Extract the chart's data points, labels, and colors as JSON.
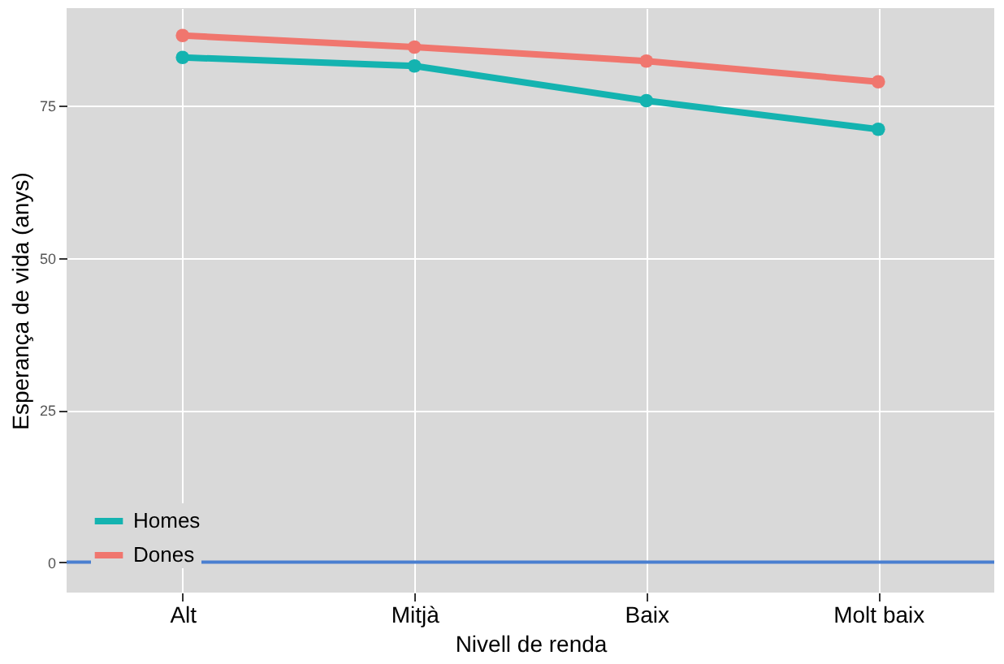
{
  "chart_data": {
    "type": "line",
    "xlabel": "Nivell de renda",
    "ylabel": "Esperança de vida (anys)",
    "categories": [
      "Alt",
      "Mitjà",
      "Baix",
      "Molt baix"
    ],
    "series": [
      {
        "name": "Homes",
        "color": "#14b3b0",
        "values": [
          82.9,
          81.5,
          75.8,
          71.1
        ]
      },
      {
        "name": "Dones",
        "color": "#f0766e",
        "values": [
          86.5,
          84.6,
          82.3,
          78.9
        ]
      }
    ],
    "ylim": [
      -5,
      91
    ],
    "yticks": [
      0,
      25,
      50,
      75
    ],
    "grid": true,
    "legend": "bottom left",
    "marker": "circle",
    "line_style": "solid",
    "ref_lines": [
      {
        "axis": "y",
        "value": 0,
        "color": "#4a7fd0"
      }
    ]
  }
}
